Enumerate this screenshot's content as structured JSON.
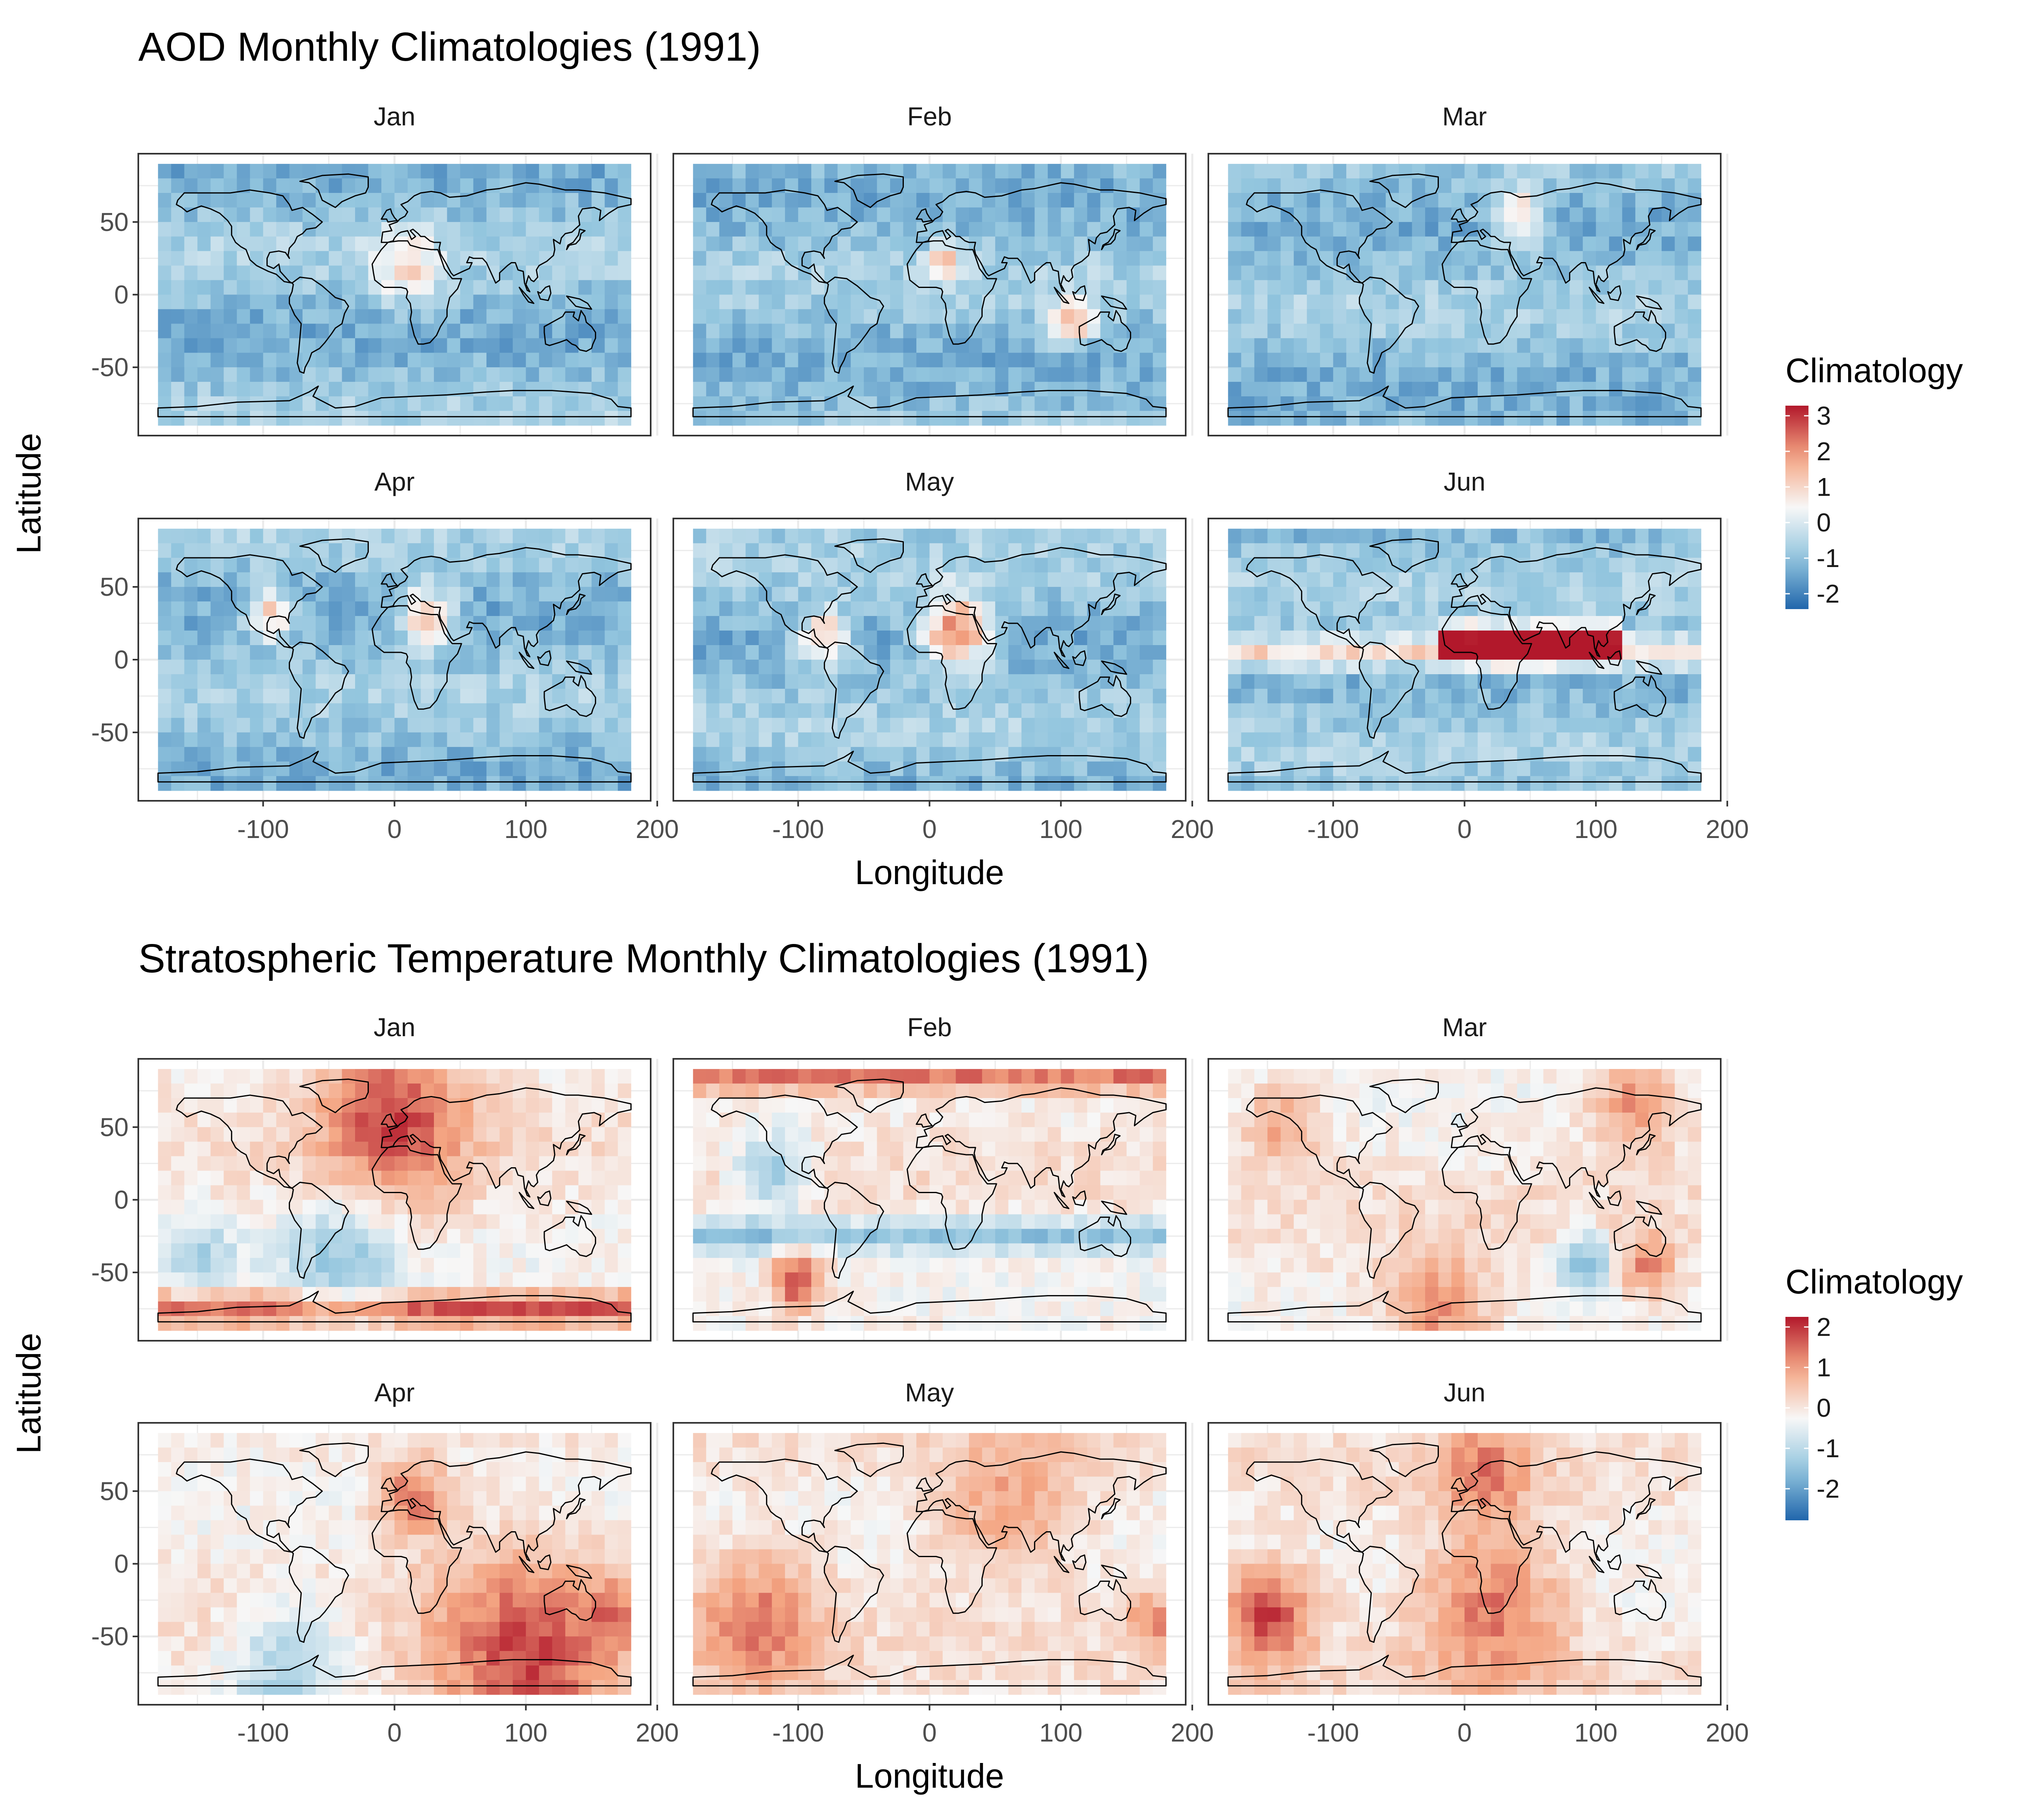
{
  "figure_titles": [
    "AOD Monthly Climatologies (1991)",
    "Stratospheric Temperature Monthly Climatologies (1991)"
  ],
  "colors": {
    "low": "#2166ac",
    "mid": "#f7f7f7",
    "high": "#b2182b",
    "panel_border": "#333333",
    "grid": "#ebebeb",
    "land_outline": "#000000"
  },
  "chart_data": [
    {
      "type": "heatmap",
      "title": "AOD Monthly Climatologies (1991)",
      "xlabel": "Longitude",
      "ylabel": "Latitude",
      "facets": [
        "Jan",
        "Feb",
        "Mar",
        "Apr",
        "May",
        "Jun"
      ],
      "xlim": [
        -195,
        195
      ],
      "ylim": [
        -97,
        97
      ],
      "x_ticks": [
        -100,
        0,
        100,
        200
      ],
      "x_tick_labels": [
        "-100",
        "0",
        "100",
        "200"
      ],
      "y_ticks": [
        50,
        0,
        -50
      ],
      "y_tick_labels": [
        "50",
        "0",
        "-50"
      ],
      "grid": true,
      "legend": {
        "title": "Climatology",
        "position": "right",
        "range": [
          -2.3,
          3.3
        ],
        "ticks": [
          3,
          2,
          1,
          0,
          -1,
          -2
        ],
        "tick_labels": [
          "3",
          "2",
          "1",
          "0",
          "-1",
          "-2"
        ]
      },
      "grid_extent": {
        "lon": [
          -180,
          180
        ],
        "lat": [
          -90,
          90
        ]
      },
      "features": [
        {
          "month": "Jan",
          "lon": 10,
          "lat": 20,
          "r": 18,
          "v": 1.0
        },
        {
          "month": "Feb",
          "lon": 12,
          "lat": 25,
          "r": 8,
          "v": 2.0
        },
        {
          "month": "Feb",
          "lon": 108,
          "lat": -18,
          "r": 12,
          "v": 1.5
        },
        {
          "month": "Mar",
          "lon": 40,
          "lat": 55,
          "r": 14,
          "v": 1.0
        },
        {
          "month": "Apr",
          "lon": 25,
          "lat": 30,
          "r": 14,
          "v": 1.5
        },
        {
          "month": "Apr",
          "lon": -95,
          "lat": 30,
          "r": 12,
          "v": 1.2
        },
        {
          "month": "May",
          "lon": 20,
          "lat": 20,
          "r": 18,
          "v": 2.2
        },
        {
          "month": "May",
          "lon": -80,
          "lat": 15,
          "r": 14,
          "v": 1.2
        },
        {
          "month": "Jun",
          "band_lat": 12,
          "lon_range": [
            -20,
            120
          ],
          "v": 3.0
        },
        {
          "month": "Jun",
          "band_lat": 5,
          "lon_range": [
            -180,
            180
          ],
          "v": 1.0
        }
      ]
    },
    {
      "type": "heatmap",
      "title": "Stratospheric Temperature Monthly Climatologies (1991)",
      "xlabel": "Longitude",
      "ylabel": "Latitude",
      "facets": [
        "Jan",
        "Feb",
        "Mar",
        "Apr",
        "May",
        "Jun"
      ],
      "xlim": [
        -195,
        195
      ],
      "ylim": [
        -97,
        97
      ],
      "x_ticks": [
        -100,
        0,
        100,
        200
      ],
      "x_tick_labels": [
        "-100",
        "0",
        "100",
        "200"
      ],
      "y_ticks": [
        50,
        0,
        -50
      ],
      "y_tick_labels": [
        "50",
        "0",
        "-50"
      ],
      "grid": true,
      "legend": {
        "title": "Climatology",
        "position": "right",
        "range": [
          -2.8,
          2.4
        ],
        "ticks": [
          2,
          1,
          0,
          -1,
          -2
        ],
        "tick_labels": [
          "2",
          "1",
          "0",
          "-1",
          "-2"
        ]
      },
      "grid_extent": {
        "lon": [
          -180,
          180
        ],
        "lat": [
          -90,
          90
        ]
      },
      "features": [
        {
          "month": "Jan",
          "lon": 0,
          "lat": 55,
          "r": 40,
          "v": 2.0
        },
        {
          "month": "Jan",
          "band_lat": -75,
          "lon_range": [
            -180,
            180
          ],
          "v": 1.8
        },
        {
          "month": "Jan",
          "lon": -40,
          "lat": -45,
          "r": 30,
          "v": -1.5
        },
        {
          "month": "Jan",
          "lon": -150,
          "lat": -40,
          "r": 20,
          "v": -1.2
        },
        {
          "month": "Feb",
          "band_lat": 85,
          "lon_range": [
            -180,
            180
          ],
          "v": 1.5
        },
        {
          "month": "Feb",
          "band_lat": -25,
          "lon_range": [
            -180,
            180
          ],
          "v": -1.5
        },
        {
          "month": "Feb",
          "lon": -100,
          "lat": -55,
          "r": 15,
          "v": 2.0
        },
        {
          "month": "Feb",
          "lon": -120,
          "lat": 20,
          "r": 20,
          "v": -1.2
        },
        {
          "month": "Mar",
          "lon": 130,
          "lat": 65,
          "r": 25,
          "v": 1.2
        },
        {
          "month": "Mar",
          "lon": -140,
          "lat": 50,
          "r": 20,
          "v": 1.0
        },
        {
          "month": "Mar",
          "lon": 90,
          "lat": -45,
          "r": 14,
          "v": -1.8
        },
        {
          "month": "Mar",
          "lon": 140,
          "lat": -45,
          "r": 14,
          "v": 1.5
        },
        {
          "month": "Mar",
          "lon": -20,
          "lat": -75,
          "r": 30,
          "v": 1.2
        },
        {
          "month": "Apr",
          "lon": 100,
          "lat": -65,
          "r": 50,
          "v": 2.0
        },
        {
          "month": "Apr",
          "lon": 15,
          "lat": 45,
          "r": 20,
          "v": 1.5
        },
        {
          "month": "Apr",
          "lon": -80,
          "lat": -70,
          "r": 30,
          "v": -1.2
        },
        {
          "month": "Apr",
          "lon": 170,
          "lat": -35,
          "r": 15,
          "v": 1.2
        },
        {
          "month": "May",
          "lon": -130,
          "lat": -40,
          "r": 35,
          "v": 1.5
        },
        {
          "month": "May",
          "lon": 60,
          "lat": 45,
          "r": 40,
          "v": 1.0
        },
        {
          "month": "May",
          "lon": 170,
          "lat": -40,
          "r": 15,
          "v": 1.3
        },
        {
          "month": "Jun",
          "lon": -150,
          "lat": -35,
          "r": 25,
          "v": 2.0
        },
        {
          "month": "Jun",
          "lon": 20,
          "lat": -35,
          "r": 40,
          "v": 1.5
        },
        {
          "month": "Jun",
          "lon": 15,
          "lat": 65,
          "r": 25,
          "v": 1.5
        }
      ]
    }
  ]
}
